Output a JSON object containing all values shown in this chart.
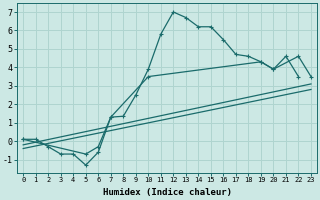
{
  "xlabel": "Humidex (Indice chaleur)",
  "bg_color": "#cce8e4",
  "grid_color": "#afd4cf",
  "line_color": "#1a6b6b",
  "xlim": [
    -0.5,
    23.5
  ],
  "ylim": [
    -1.7,
    7.5
  ],
  "xticks": [
    0,
    1,
    2,
    3,
    4,
    5,
    6,
    7,
    8,
    9,
    10,
    11,
    12,
    13,
    14,
    15,
    16,
    17,
    18,
    19,
    20,
    21,
    22,
    23
  ],
  "yticks": [
    -1,
    0,
    1,
    2,
    3,
    4,
    5,
    6,
    7
  ],
  "line1_x": [
    0,
    1,
    2,
    3,
    4,
    5,
    6,
    7,
    8,
    9,
    10,
    11,
    12,
    13,
    14,
    15,
    16,
    17,
    18,
    19,
    20,
    21,
    22
  ],
  "line1_y": [
    0.1,
    0.1,
    -0.3,
    -0.7,
    -0.7,
    -1.3,
    -0.6,
    1.3,
    1.35,
    2.5,
    3.9,
    5.8,
    7.0,
    6.7,
    6.2,
    6.2,
    5.5,
    4.7,
    4.6,
    4.3,
    3.9,
    4.6,
    3.5
  ],
  "line2_x": [
    0,
    5,
    6,
    7,
    10,
    19,
    20,
    22,
    23
  ],
  "line2_y": [
    0.1,
    -0.7,
    -0.3,
    1.3,
    3.5,
    4.3,
    3.9,
    4.6,
    3.5
  ],
  "line3_x": [
    0,
    23
  ],
  "line3_y": [
    -0.2,
    3.1
  ],
  "line4_x": [
    0,
    23
  ],
  "line4_y": [
    -0.4,
    2.8
  ]
}
